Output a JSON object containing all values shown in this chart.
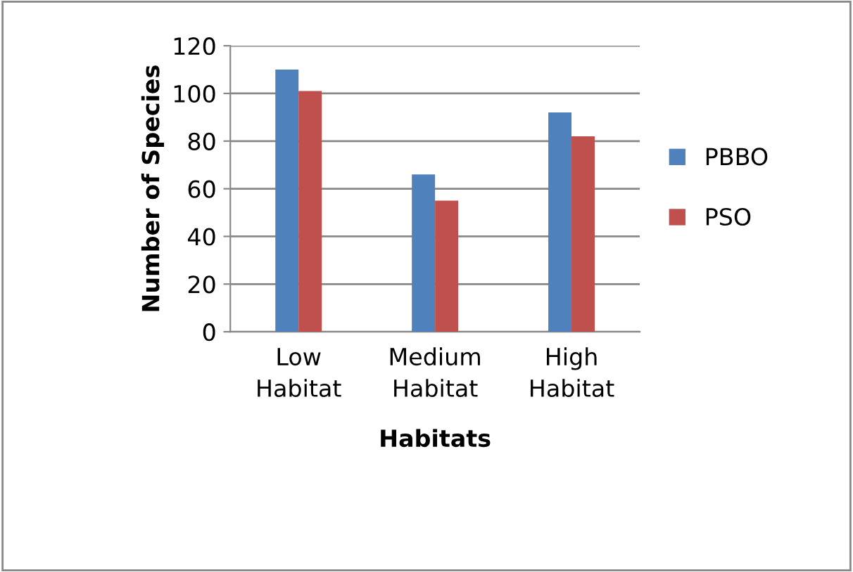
{
  "chart_data": {
    "type": "bar",
    "xlabel": "Habitats",
    "ylabel": "Number of Species",
    "categories": [
      "Low\nHabitat",
      "Medium\nHabitat",
      "High\nHabitat"
    ],
    "series": [
      {
        "name": "PBBO",
        "color": "#4f81bd",
        "values": [
          110,
          66,
          92
        ]
      },
      {
        "name": "PSO",
        "color": "#c0504d",
        "values": [
          101,
          55,
          82
        ]
      }
    ],
    "ylim": [
      0,
      120
    ],
    "yticks": [
      0,
      20,
      40,
      60,
      80,
      100,
      120
    ],
    "grid": "y",
    "legend": "right"
  }
}
